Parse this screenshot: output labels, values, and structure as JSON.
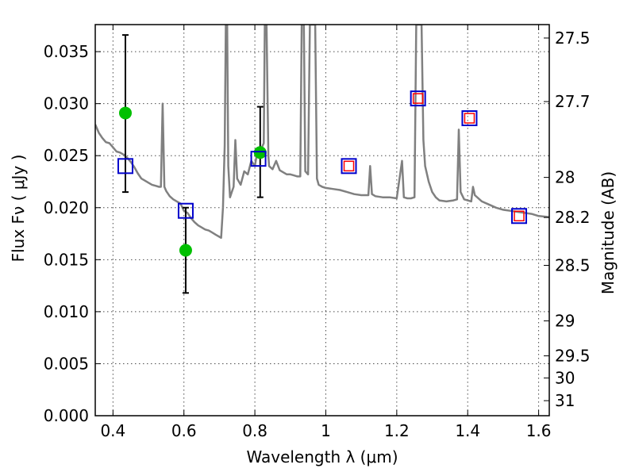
{
  "chart_data": {
    "type": "scatter",
    "xlabel": "Wavelength  λ (μm)",
    "ylabel": "Flux  Fν  ( μJy )",
    "y2label": "Magnitude (AB)",
    "xlim": [
      0.35,
      1.63
    ],
    "ylim": [
      0.0,
      0.0376
    ],
    "grid": true,
    "x_ticks": [
      {
        "v": 0.4,
        "label": "0.4"
      },
      {
        "v": 0.6,
        "label": "0.6"
      },
      {
        "v": 0.8,
        "label": "0.8"
      },
      {
        "v": 1.0,
        "label": "1"
      },
      {
        "v": 1.2,
        "label": "1.2"
      },
      {
        "v": 1.4,
        "label": "1.4"
      },
      {
        "v": 1.6,
        "label": "1.6"
      }
    ],
    "y_ticks": [
      {
        "v": 0.0,
        "label": "0.000"
      },
      {
        "v": 0.005,
        "label": "0.005"
      },
      {
        "v": 0.01,
        "label": "0.010"
      },
      {
        "v": 0.015,
        "label": "0.015"
      },
      {
        "v": 0.02,
        "label": "0.020"
      },
      {
        "v": 0.025,
        "label": "0.025"
      },
      {
        "v": 0.03,
        "label": "0.030"
      },
      {
        "v": 0.035,
        "label": "0.035"
      }
    ],
    "mag_ticks": [
      {
        "mag": 27.5,
        "label": "27.5"
      },
      {
        "mag": 27.7,
        "label": "27.7"
      },
      {
        "mag": 28.0,
        "label": "28"
      },
      {
        "mag": 28.2,
        "label": "28.2"
      },
      {
        "mag": 28.5,
        "label": "28.5"
      },
      {
        "mag": 29.0,
        "label": "29"
      },
      {
        "mag": 29.5,
        "label": "29.5"
      },
      {
        "mag": 30.0,
        "label": "30"
      },
      {
        "mag": 31.0,
        "label": "31"
      }
    ],
    "series": [
      {
        "kind": "line",
        "color": "#808080",
        "points": [
          [
            0.35,
            0.028
          ],
          [
            0.36,
            0.0272
          ],
          [
            0.37,
            0.0267
          ],
          [
            0.38,
            0.0263
          ],
          [
            0.39,
            0.0262
          ],
          [
            0.4,
            0.0258
          ],
          [
            0.41,
            0.0254
          ],
          [
            0.42,
            0.0253
          ],
          [
            0.43,
            0.0251
          ],
          [
            0.44,
            0.0248
          ],
          [
            0.45,
            0.0244
          ],
          [
            0.46,
            0.0239
          ],
          [
            0.47,
            0.0233
          ],
          [
            0.48,
            0.0228
          ],
          [
            0.49,
            0.0226
          ],
          [
            0.5,
            0.0224
          ],
          [
            0.51,
            0.0222
          ],
          [
            0.52,
            0.0221
          ],
          [
            0.53,
            0.022
          ],
          [
            0.535,
            0.022
          ],
          [
            0.54,
            0.03
          ],
          [
            0.545,
            0.022
          ],
          [
            0.55,
            0.0216
          ],
          [
            0.56,
            0.0211
          ],
          [
            0.57,
            0.0208
          ],
          [
            0.58,
            0.0206
          ],
          [
            0.59,
            0.0204
          ],
          [
            0.6,
            0.0197
          ],
          [
            0.61,
            0.0195
          ],
          [
            0.62,
            0.019
          ],
          [
            0.63,
            0.0186
          ],
          [
            0.64,
            0.0183
          ],
          [
            0.65,
            0.0181
          ],
          [
            0.66,
            0.0179
          ],
          [
            0.67,
            0.0178
          ],
          [
            0.68,
            0.0176
          ],
          [
            0.69,
            0.0174
          ],
          [
            0.7,
            0.0172
          ],
          [
            0.705,
            0.0171
          ],
          [
            0.71,
            0.02
          ],
          [
            0.715,
            0.026
          ],
          [
            0.718,
            0.0376
          ],
          [
            0.722,
            0.0376
          ],
          [
            0.725,
            0.024
          ],
          [
            0.73,
            0.021
          ],
          [
            0.735,
            0.0215
          ],
          [
            0.74,
            0.022
          ],
          [
            0.745,
            0.0265
          ],
          [
            0.75,
            0.0228
          ],
          [
            0.76,
            0.0222
          ],
          [
            0.77,
            0.0235
          ],
          [
            0.78,
            0.0232
          ],
          [
            0.79,
            0.0245
          ],
          [
            0.8,
            0.024
          ],
          [
            0.805,
            0.025
          ],
          [
            0.81,
            0.0248
          ],
          [
            0.815,
            0.0255
          ],
          [
            0.82,
            0.0258
          ],
          [
            0.825,
            0.0262
          ],
          [
            0.828,
            0.0376
          ],
          [
            0.833,
            0.0376
          ],
          [
            0.838,
            0.025
          ],
          [
            0.84,
            0.024
          ],
          [
            0.85,
            0.0237
          ],
          [
            0.86,
            0.0245
          ],
          [
            0.87,
            0.0236
          ],
          [
            0.88,
            0.0234
          ],
          [
            0.89,
            0.0232
          ],
          [
            0.9,
            0.0232
          ],
          [
            0.91,
            0.0231
          ],
          [
            0.92,
            0.023
          ],
          [
            0.928,
            0.023
          ],
          [
            0.932,
            0.0376
          ],
          [
            0.938,
            0.0376
          ],
          [
            0.942,
            0.0235
          ],
          [
            0.95,
            0.0232
          ],
          [
            0.955,
            0.0376
          ],
          [
            0.96,
            0.0376
          ],
          [
            0.965,
            0.0376
          ],
          [
            0.97,
            0.0376
          ],
          [
            0.975,
            0.0228
          ],
          [
            0.98,
            0.0222
          ],
          [
            0.99,
            0.022
          ],
          [
            1.0,
            0.0219
          ],
          [
            1.02,
            0.0218
          ],
          [
            1.04,
            0.0217
          ],
          [
            1.06,
            0.0215
          ],
          [
            1.08,
            0.0213
          ],
          [
            1.1,
            0.0212
          ],
          [
            1.12,
            0.0212
          ],
          [
            1.125,
            0.024
          ],
          [
            1.13,
            0.0213
          ],
          [
            1.14,
            0.0211
          ],
          [
            1.16,
            0.021
          ],
          [
            1.18,
            0.021
          ],
          [
            1.2,
            0.0209
          ],
          [
            1.215,
            0.0245
          ],
          [
            1.22,
            0.021
          ],
          [
            1.23,
            0.0209
          ],
          [
            1.24,
            0.0209
          ],
          [
            1.25,
            0.021
          ],
          [
            1.255,
            0.0376
          ],
          [
            1.26,
            0.0376
          ],
          [
            1.265,
            0.0376
          ],
          [
            1.27,
            0.0376
          ],
          [
            1.275,
            0.0265
          ],
          [
            1.28,
            0.024
          ],
          [
            1.29,
            0.0225
          ],
          [
            1.3,
            0.0215
          ],
          [
            1.31,
            0.021
          ],
          [
            1.32,
            0.0207
          ],
          [
            1.34,
            0.0206
          ],
          [
            1.36,
            0.0207
          ],
          [
            1.37,
            0.0208
          ],
          [
            1.375,
            0.0275
          ],
          [
            1.38,
            0.0215
          ],
          [
            1.39,
            0.0208
          ],
          [
            1.4,
            0.0207
          ],
          [
            1.41,
            0.0206
          ],
          [
            1.415,
            0.022
          ],
          [
            1.42,
            0.0212
          ],
          [
            1.44,
            0.0206
          ],
          [
            1.46,
            0.0203
          ],
          [
            1.48,
            0.02
          ],
          [
            1.5,
            0.0198
          ],
          [
            1.52,
            0.0197
          ],
          [
            1.54,
            0.0196
          ],
          [
            1.56,
            0.0195
          ],
          [
            1.58,
            0.0194
          ],
          [
            1.6,
            0.0192
          ],
          [
            1.63,
            0.0191
          ]
        ]
      },
      {
        "kind": "errorbar",
        "color": "#000000",
        "points": [
          {
            "x": 0.435,
            "y": 0.0291,
            "lo": 0.0215,
            "hi": 0.0366
          },
          {
            "x": 0.605,
            "y": 0.0159,
            "lo": 0.0118,
            "hi": 0.02
          },
          {
            "x": 0.815,
            "y": 0.0253,
            "lo": 0.021,
            "hi": 0.0297
          }
        ]
      },
      {
        "kind": "circle",
        "color": "#00c000",
        "points": [
          [
            0.435,
            0.0291
          ],
          [
            0.605,
            0.0159
          ],
          [
            0.815,
            0.0253
          ]
        ]
      },
      {
        "kind": "square",
        "color": "#ff0000",
        "points": [
          [
            1.065,
            0.024
          ],
          [
            1.26,
            0.0305
          ],
          [
            1.405,
            0.0286
          ],
          [
            1.545,
            0.0192
          ]
        ]
      },
      {
        "kind": "open-square",
        "color": "#0000cc",
        "points": [
          [
            0.435,
            0.024
          ],
          [
            0.605,
            0.0197
          ],
          [
            0.81,
            0.0247
          ],
          [
            1.065,
            0.024
          ],
          [
            1.26,
            0.0305
          ],
          [
            1.405,
            0.0286
          ],
          [
            1.545,
            0.0192
          ]
        ]
      }
    ]
  }
}
